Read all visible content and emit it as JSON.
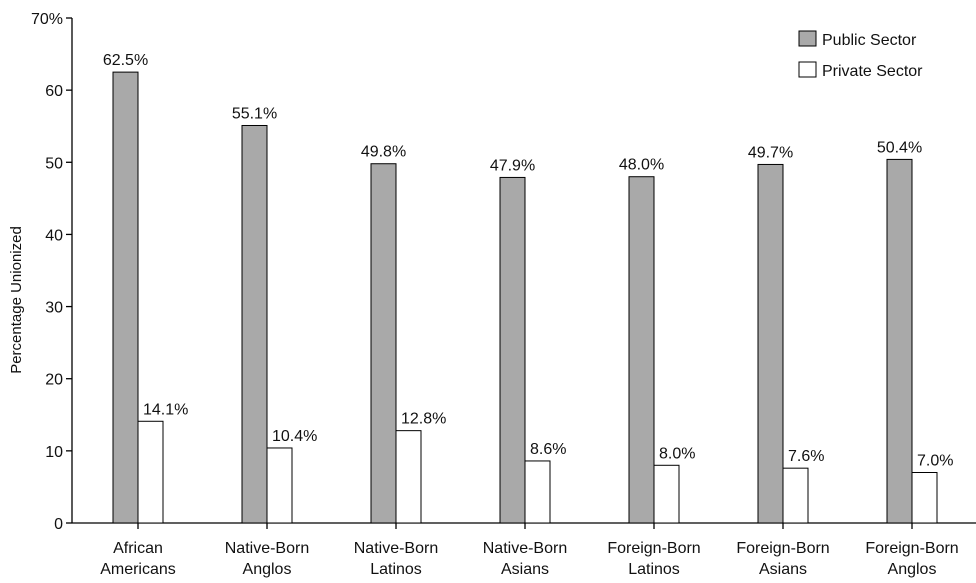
{
  "chart_data": {
    "type": "bar",
    "title": "",
    "xlabel": "",
    "ylabel": "Percentage Unionized",
    "ylim": [
      0,
      70
    ],
    "yticks": [
      {
        "value": 0,
        "label": "0"
      },
      {
        "value": 10,
        "label": "10"
      },
      {
        "value": 20,
        "label": "20"
      },
      {
        "value": 30,
        "label": "30"
      },
      {
        "value": 40,
        "label": "40"
      },
      {
        "value": 50,
        "label": "50"
      },
      {
        "value": 60,
        "label": "60"
      },
      {
        "value": 70,
        "label": "70%"
      }
    ],
    "grid": false,
    "legend_position": "top-right",
    "categories": [
      [
        "African",
        "Americans"
      ],
      [
        "Native-Born",
        "Anglos"
      ],
      [
        "Native-Born",
        "Latinos"
      ],
      [
        "Native-Born",
        "Asians"
      ],
      [
        "Foreign-Born",
        "Latinos"
      ],
      [
        "Foreign-Born",
        "Asians"
      ],
      [
        "Foreign-Born",
        "Anglos"
      ]
    ],
    "series": [
      {
        "name": "Public Sector",
        "color": "#a9a9a9",
        "values": [
          62.5,
          55.1,
          49.8,
          47.9,
          48.0,
          49.7,
          50.4
        ],
        "labels": [
          "62.5%",
          "55.1%",
          "49.8%",
          "47.9%",
          "48.0%",
          "49.7%",
          "50.4%"
        ]
      },
      {
        "name": "Private Sector",
        "color": "#ffffff",
        "values": [
          14.1,
          10.4,
          12.8,
          8.6,
          8.0,
          7.6,
          7.0
        ],
        "labels": [
          "14.1%",
          "10.4%",
          "12.8%",
          "8.6%",
          "8.0%",
          "7.6%",
          "7.0%"
        ]
      }
    ]
  }
}
